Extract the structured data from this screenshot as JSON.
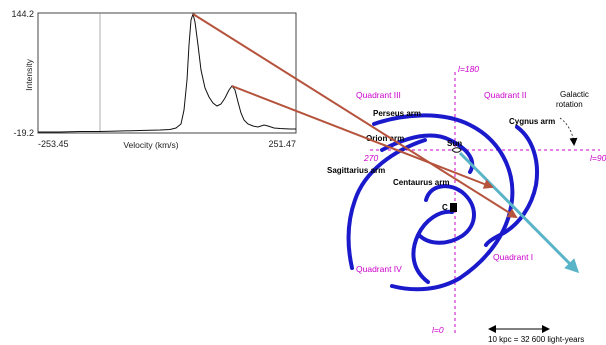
{
  "spectrum": {
    "y_top": "144.2",
    "y_bottom": "-19.2",
    "x_left": "-253.45",
    "x_right": "251.47",
    "x_label": "Velocity (km/s)",
    "y_label": "Intensity"
  },
  "galaxy": {
    "quadrants": [
      "Quadrant III",
      "Quadrant II",
      "Quadrant IV",
      "Quadrant I"
    ],
    "longitudes": {
      "l180": "l=180",
      "l90": "l=90",
      "l270": "270",
      "l0": "l=0"
    },
    "arms": {
      "perseus": "Perseus arm",
      "orion": "Orion arm",
      "sagittarius": "Sagittarius arm",
      "centaurus": "Centaurus arm",
      "cygnus": "Cygnus arm"
    },
    "sun": "Sun",
    "center": "C",
    "rotation": [
      "Galactic",
      "rotation"
    ],
    "scale": "10 kpc = 32 600 light-years"
  },
  "colors": {
    "arm": "#1a1acc",
    "pointer": "#b5533c",
    "sightline": "#5ab4c8",
    "axis_line": "#cc00cc",
    "quadrant_text": "#cc00cc"
  }
}
